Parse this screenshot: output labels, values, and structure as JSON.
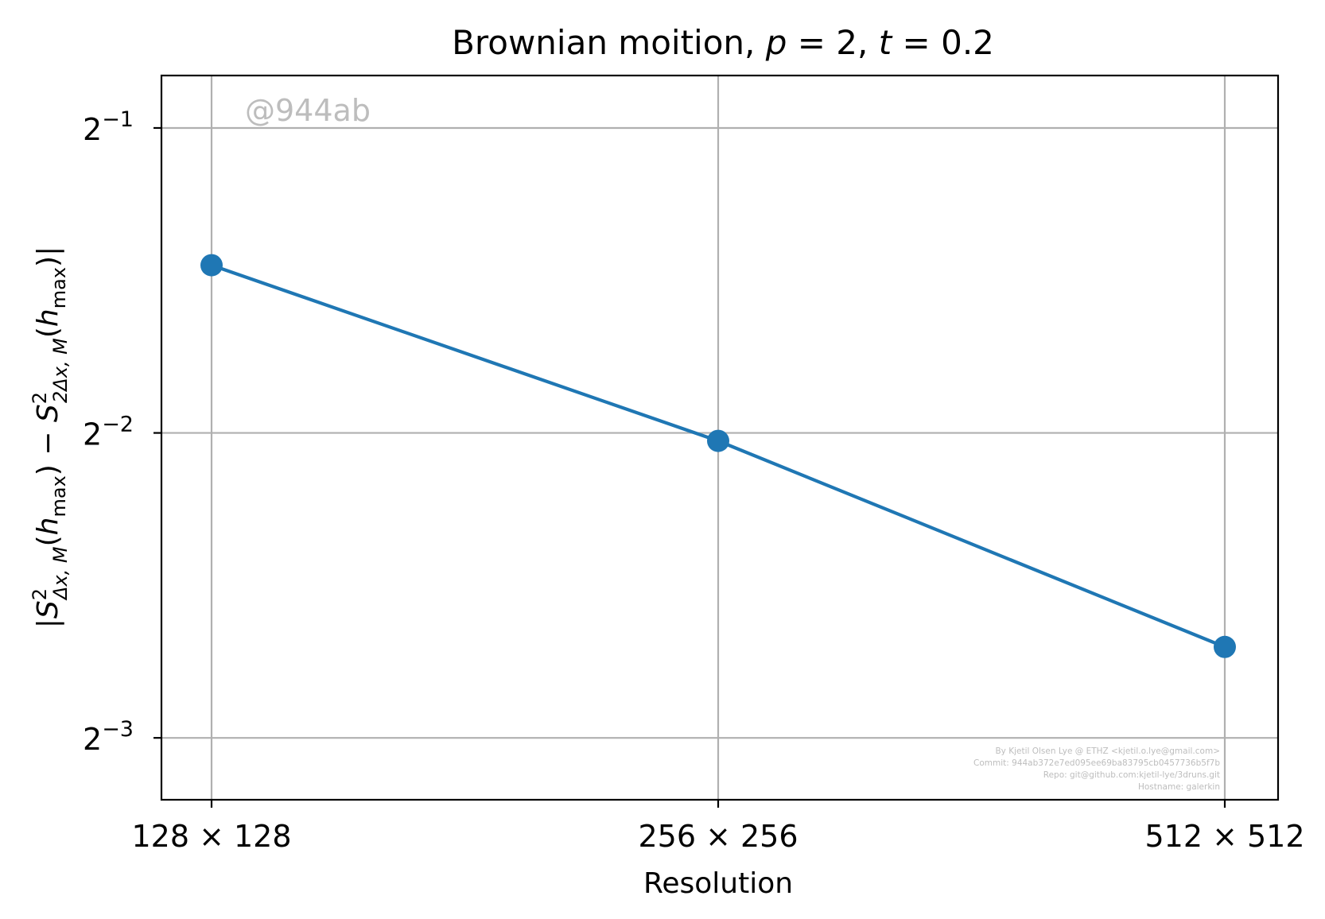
{
  "chart_data": {
    "type": "line",
    "title_prefix": "Brownian moition, ",
    "title_p_var": "p",
    "title_p_value": " = 2, ",
    "title_t_var": "t",
    "title_t_value": " = 0.2",
    "xlabel": "Resolution",
    "ylabel": {
      "open": "|",
      "s1": "S",
      "s1_sup": "2",
      "s1_sub": "Δx, M",
      "h1_open": "(",
      "h1": "h",
      "h1_sub": "max",
      "h1_close": ")",
      "minus": " − ",
      "s2": "S",
      "s2_sup": "2",
      "s2_sub": "2Δx, M",
      "h2_open": "(",
      "h2": "h",
      "h2_sub": "max",
      "h2_close": ")",
      "close": "|"
    },
    "y_scale": "log2",
    "ylim": [
      0.1086,
      0.5633
    ],
    "categories": [
      "128 × 128",
      "256 × 256",
      "512 × 512"
    ],
    "y_ticks": [
      {
        "value": 0.5,
        "base": "2",
        "exp": "−1"
      },
      {
        "value": 0.25,
        "base": "2",
        "exp": "−2"
      },
      {
        "value": 0.125,
        "base": "2",
        "exp": "−3"
      }
    ],
    "series": [
      {
        "values": [
          0.366,
          0.2455,
          0.1537
        ],
        "color": "#1f77b4"
      }
    ],
    "grid": true,
    "watermark": "@944ab",
    "credits": [
      "By Kjetil Olsen Lye @ ETHZ <kjetil.o.lye@gmail.com>",
      "Commit: 944ab372e7ed095ee69ba83795cb0457736b5f7b",
      "Repo: git@github.com:kjetil-lye/3druns.git",
      "Hostname: galerkin"
    ]
  }
}
